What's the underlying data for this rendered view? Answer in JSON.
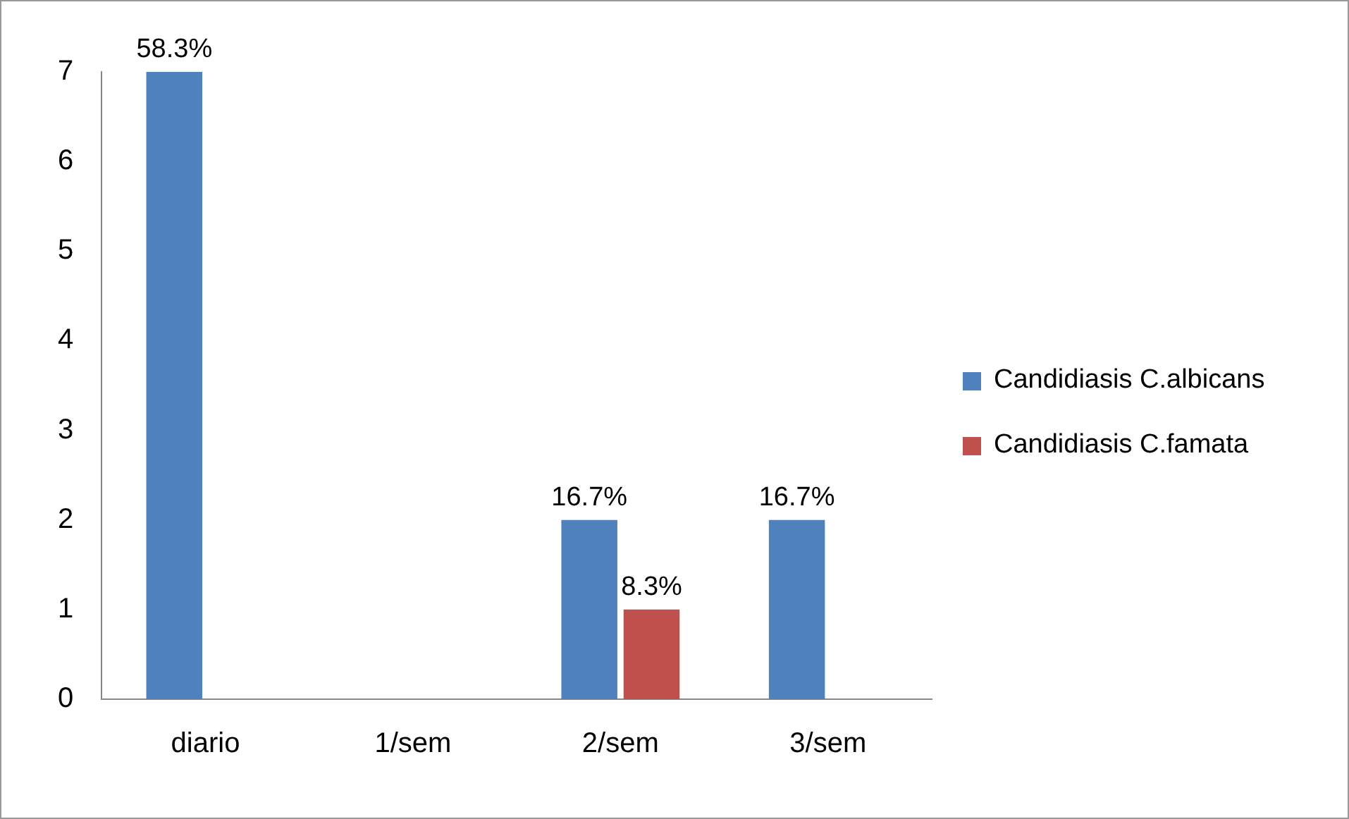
{
  "chart_data": {
    "type": "bar",
    "categories": [
      "diario",
      "1/sem",
      "2/sem",
      "3/sem"
    ],
    "series": [
      {
        "name": "Candidiasis C.albicans",
        "color": "#4f81bd",
        "values": [
          7,
          0,
          2,
          2
        ]
      },
      {
        "name": "Candidiasis C.famata",
        "color": "#c0504d",
        "values": [
          0,
          0,
          1,
          0
        ]
      }
    ],
    "annotations": [
      {
        "text": "58.3%",
        "x": "diario",
        "y": 7
      },
      {
        "text": "16.7%",
        "x": "2/sem",
        "y": 2
      },
      {
        "text": "8.3%",
        "x": "2/sem",
        "y": 1
      },
      {
        "text": "16.7%",
        "x": "3/sem",
        "y": 2
      }
    ],
    "ylim": [
      0,
      7
    ],
    "yticks": [
      0,
      1,
      2,
      3,
      4,
      5,
      6,
      7
    ],
    "grid": false,
    "legend": "right"
  }
}
